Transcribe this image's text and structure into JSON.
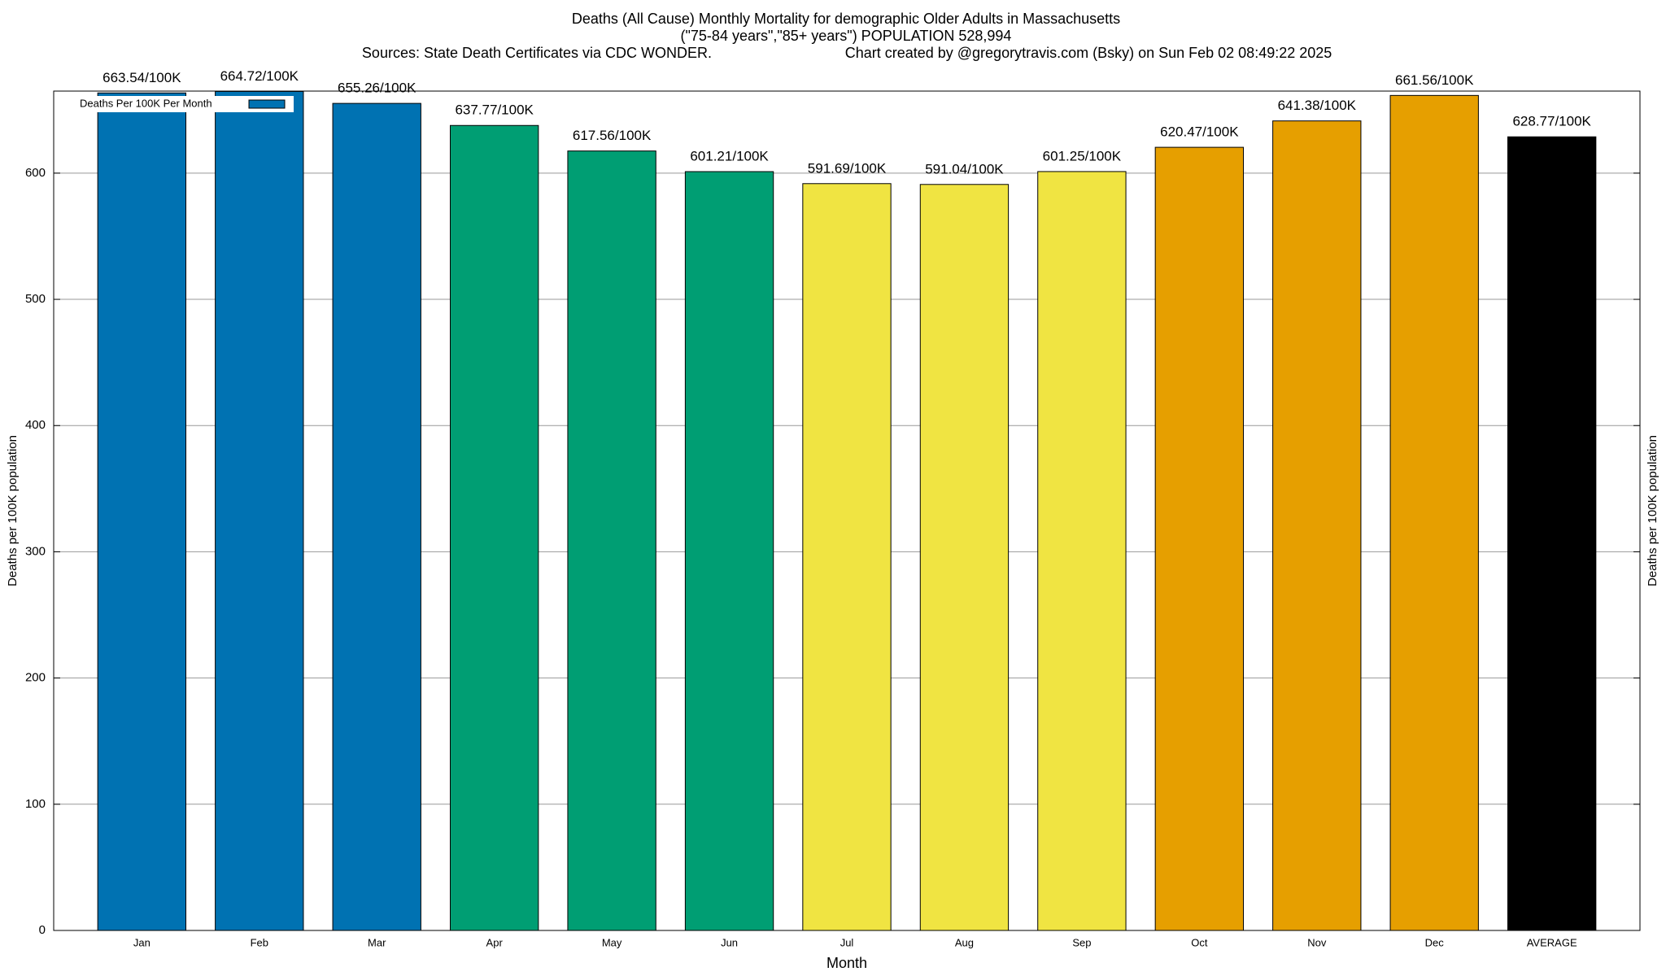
{
  "chart_data": {
    "type": "bar",
    "title": "Deaths (All Cause) Monthly Mortality for demographic Older Adults in Massachusetts",
    "subtitle": "(\"75-84 years\",\"85+ years\") POPULATION 528,994",
    "sources": "Sources: State Death Certificates via CDC WONDER.",
    "credit": "Chart created by @gregorytravis.com (Bsky) on Sun Feb 02 08:49:22 2025",
    "x_label": "Month",
    "y_label": "Deaths per 100K population",
    "categories": [
      "Jan",
      "Feb",
      "Mar",
      "Apr",
      "May",
      "Jun",
      "Jul",
      "Aug",
      "Sep",
      "Oct",
      "Nov",
      "Dec",
      "AVERAGE"
    ],
    "series": [
      {
        "name": "Deaths Per 100K Per Month",
        "color": "#0072b2",
        "colors": [
          "#0072b2",
          "#0072b2",
          "#0072b2",
          "#009e73",
          "#009e73",
          "#009e73",
          "#f0e442",
          "#f0e442",
          "#f0e442",
          "#e69f00",
          "#e69f00",
          "#e69f00",
          "#000000"
        ],
        "values": [
          663.54,
          664.72,
          655.26,
          637.77,
          617.56,
          601.21,
          591.69,
          591.04,
          601.25,
          620.47,
          641.38,
          661.56,
          628.77
        ],
        "value_labels": [
          "663.54/100K",
          "664.72/100K",
          "655.26/100K",
          "637.77/100K",
          "617.56/100K",
          "601.21/100K",
          "591.69/100K",
          "591.04/100K",
          "601.25/100K",
          "620.47/100K",
          "641.38/100K",
          "661.56/100K",
          "628.77/100K"
        ]
      }
    ],
    "ylim": [
      0,
      665
    ],
    "yticks": [
      0,
      100,
      200,
      300,
      400,
      500,
      600
    ],
    "grid": true,
    "legend": "upper left"
  }
}
